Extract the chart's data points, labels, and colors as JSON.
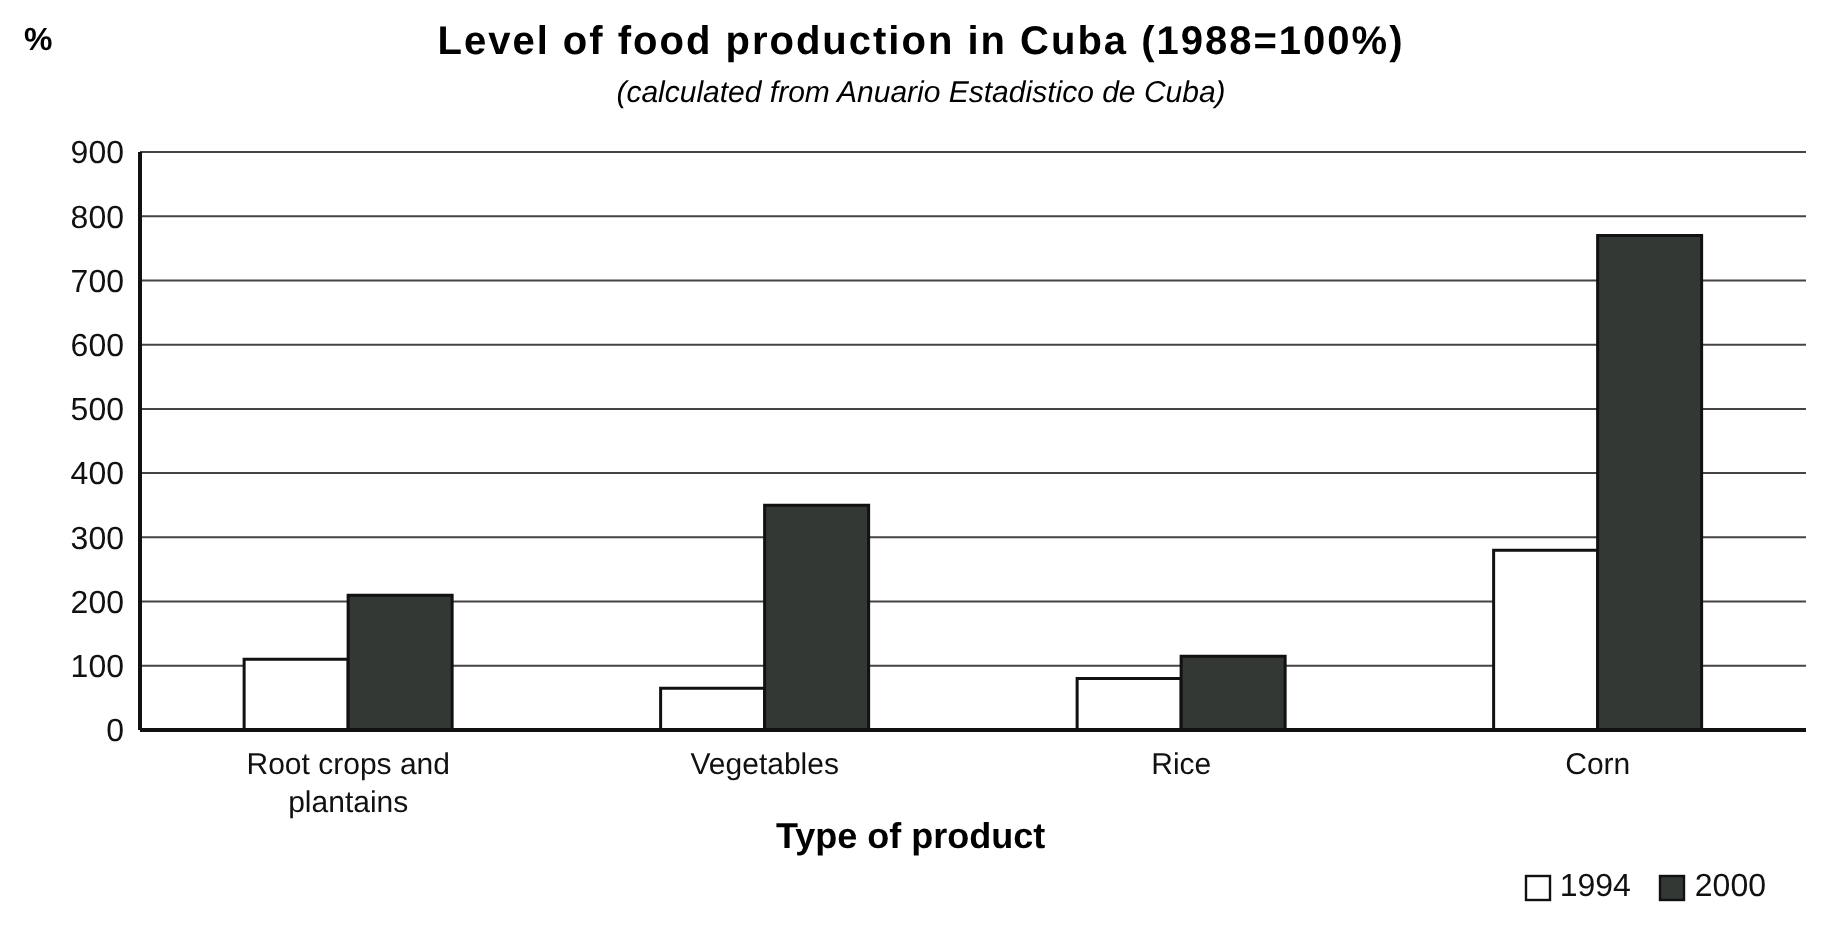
{
  "chart_data": {
    "type": "bar",
    "title": "Level of food production in Cuba (1988=100%)",
    "subtitle": "(calculated from Anuario Estadistico de Cuba)",
    "ylabel": "%",
    "xlabel": "Type of product",
    "categories": [
      "Root crops and plantains",
      "Vegetables",
      "Rice",
      "Corn"
    ],
    "series": [
      {
        "name": "1994",
        "color": "#ffffff",
        "values": [
          110,
          65,
          80,
          280
        ]
      },
      {
        "name": "2000",
        "color": "#333835",
        "values": [
          210,
          350,
          115,
          770
        ]
      }
    ],
    "ylim": [
      0,
      900
    ],
    "yticks": [
      0,
      100,
      200,
      300,
      400,
      500,
      600,
      700,
      800,
      900
    ],
    "grid": "y",
    "legend": "bottom right"
  }
}
